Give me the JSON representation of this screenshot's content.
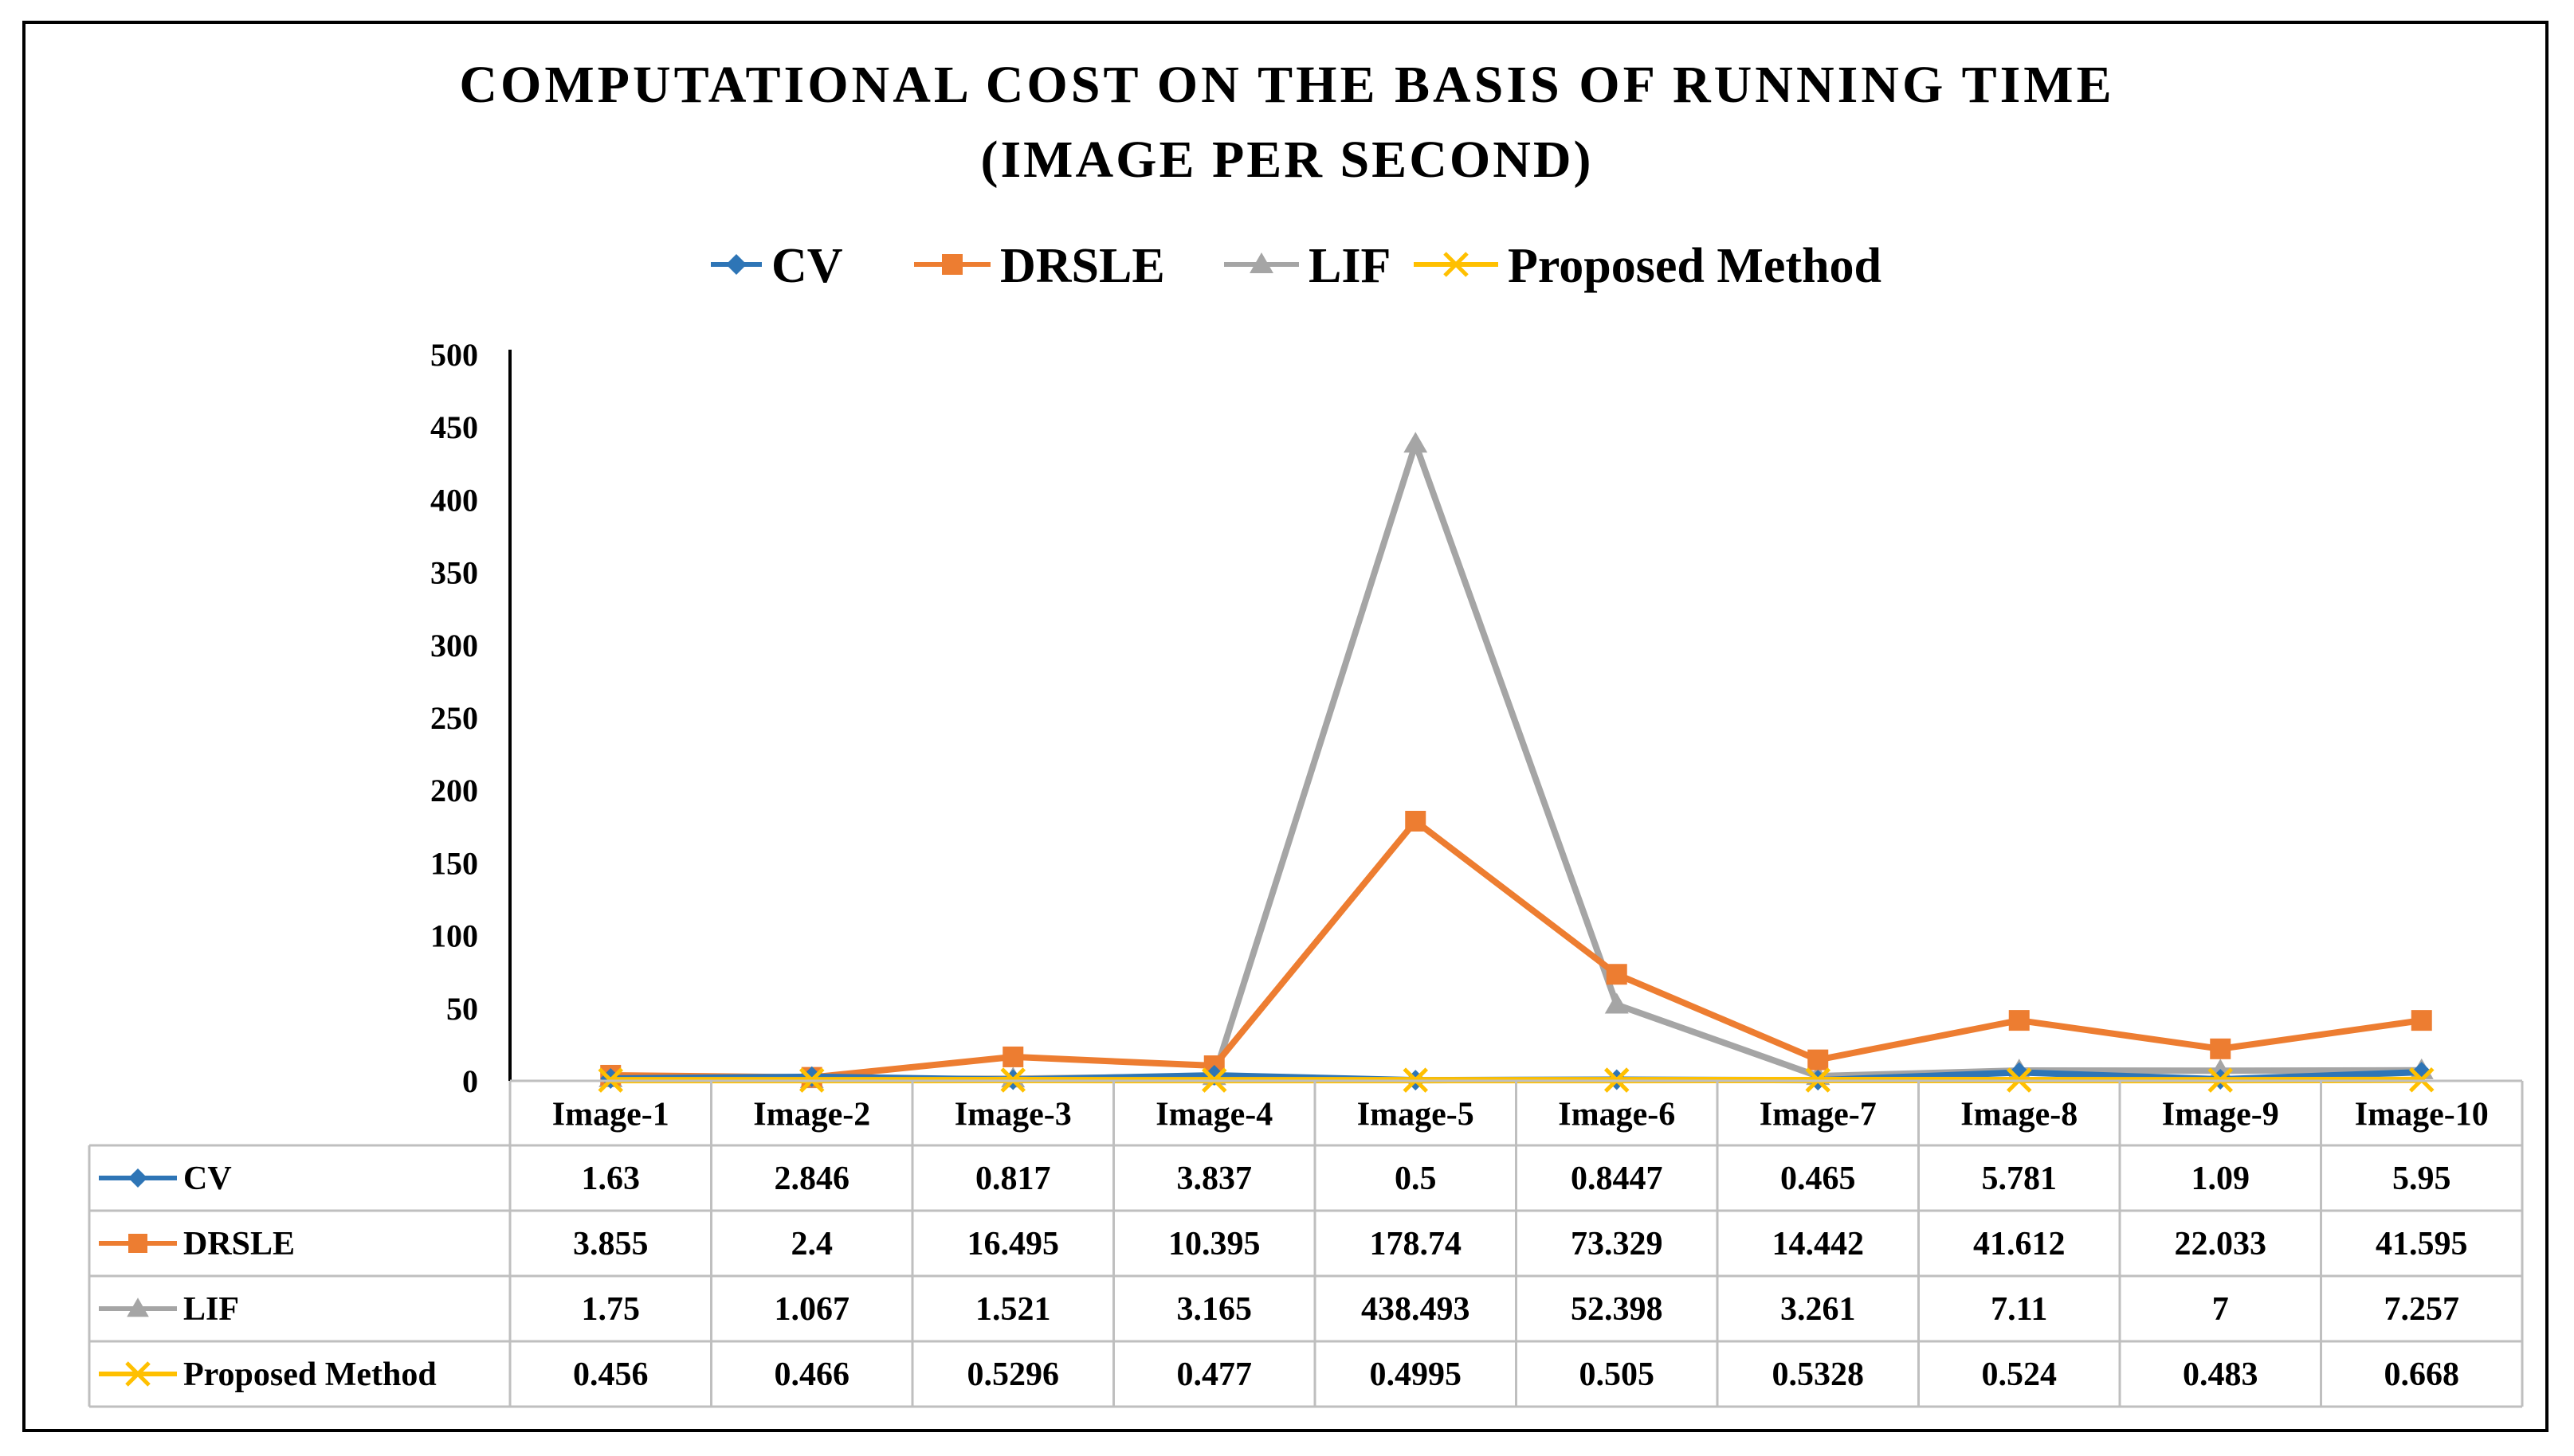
{
  "chart_data": {
    "type": "line",
    "title": "COMPUTATIONAL COST ON THE BASIS OF RUNNING TIME",
    "subtitle": "(IMAGE PER SECOND)",
    "xlabel": "",
    "ylabel": "",
    "ylim": [
      0,
      500
    ],
    "y_ticks": [
      0,
      50,
      100,
      150,
      200,
      250,
      300,
      350,
      400,
      450,
      500
    ],
    "categories": [
      "Image-1",
      "Image-2",
      "Image-3",
      "Image-4",
      "Image-5",
      "Image-6",
      "Image-7",
      "Image-8",
      "Image-9",
      "Image-10"
    ],
    "legend_position": "top",
    "series": [
      {
        "name": "CV",
        "color": "#2e75b6",
        "marker": "diamond",
        "values": [
          1.63,
          2.846,
          0.817,
          3.837,
          0.5,
          0.8447,
          0.465,
          5.781,
          1.09,
          5.95
        ],
        "labels": [
          "1.63",
          "2.846",
          "0.817",
          "3.837",
          "0.5",
          "0.8447",
          "0.465",
          "5.781",
          "1.09",
          "5.95"
        ]
      },
      {
        "name": "DRSLE",
        "color": "#ed7d31",
        "marker": "square",
        "values": [
          3.855,
          2.4,
          16.495,
          10.395,
          178.74,
          73.329,
          14.442,
          41.612,
          22.033,
          41.595
        ],
        "labels": [
          "3.855",
          "2.4",
          "16.495",
          "10.395",
          "178.74",
          "73.329",
          "14.442",
          "41.612",
          "22.033",
          "41.595"
        ]
      },
      {
        "name": "LIF",
        "color": "#a5a5a5",
        "marker": "triangle",
        "values": [
          1.75,
          1.067,
          1.521,
          3.165,
          438.493,
          52.398,
          3.261,
          7.11,
          7,
          7.257
        ],
        "labels": [
          "1.75",
          "1.067",
          "1.521",
          "3.165",
          "438.493",
          "52.398",
          "3.261",
          "7.11",
          "7",
          "7.257"
        ]
      },
      {
        "name": "Proposed Method",
        "color": "#ffc000",
        "marker": "x",
        "values": [
          0.456,
          0.466,
          0.5296,
          0.477,
          0.4995,
          0.505,
          0.5328,
          0.524,
          0.483,
          0.668
        ],
        "labels": [
          "0.456",
          "0.466",
          "0.5296",
          "0.477",
          "0.4995",
          "0.505",
          "0.5328",
          "0.524",
          "0.483",
          "0.668"
        ]
      }
    ]
  }
}
